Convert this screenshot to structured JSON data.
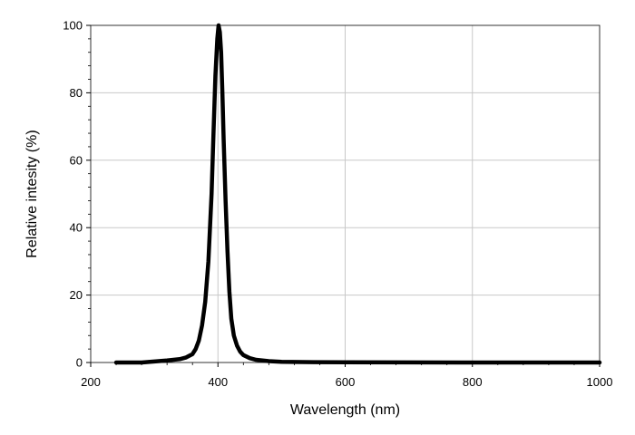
{
  "chart_data": {
    "type": "line",
    "title": "",
    "xlabel": "Wavelength (nm)",
    "ylabel": "Relative intesity (%)",
    "xlim": [
      200,
      1000
    ],
    "ylim": [
      0,
      100
    ],
    "grid": true,
    "x_ticks": [
      200,
      400,
      600,
      800,
      1000
    ],
    "y_ticks": [
      0,
      20,
      40,
      60,
      80,
      100
    ],
    "colors": {
      "line": "#000000",
      "grid": "#c8c8c8",
      "axis": "#000000"
    },
    "series": [
      {
        "x": [
          240,
          260,
          280,
          300,
          320,
          340,
          350,
          360,
          365,
          370,
          375,
          380,
          385,
          390,
          393,
          396,
          399,
          401,
          403,
          405,
          407,
          409,
          412,
          415,
          418,
          421,
          425,
          430,
          435,
          440,
          450,
          460,
          480,
          500,
          550,
          600,
          700,
          800,
          900,
          1000
        ],
        "y": [
          0,
          0,
          0,
          0.3,
          0.6,
          1,
          1.5,
          2.5,
          4,
          6.5,
          11,
          18,
          30,
          50,
          68,
          85,
          96,
          100,
          98,
          92,
          80,
          66,
          48,
          33,
          21,
          13,
          8,
          5,
          3.2,
          2.2,
          1.3,
          0.8,
          0.4,
          0.2,
          0.1,
          0.05,
          0.02,
          0,
          0,
          0
        ]
      }
    ]
  }
}
